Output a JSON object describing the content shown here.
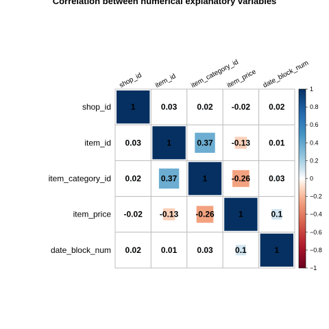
{
  "chart_data": {
    "type": "heatmap",
    "title": "Correlation between numerical explanatory variables",
    "variables": [
      "shop_id",
      "item_id",
      "item_category_id",
      "item_price",
      "date_block_num"
    ],
    "matrix": [
      [
        1,
        0.03,
        0.02,
        -0.02,
        0.02
      ],
      [
        0.03,
        1,
        0.37,
        -0.13,
        0.01
      ],
      [
        0.02,
        0.37,
        1,
        -0.26,
        0.03
      ],
      [
        -0.02,
        -0.13,
        -0.26,
        1,
        0.1
      ],
      [
        0.02,
        0.01,
        0.03,
        0.1,
        1
      ]
    ],
    "labels": [
      [
        "1",
        "0.03",
        "0.02",
        "-0.02",
        "0.02"
      ],
      [
        "0.03",
        "1",
        "0.37",
        "-0.13",
        "0.01"
      ],
      [
        "0.02",
        "0.37",
        "1",
        "-0.26",
        "0.03"
      ],
      [
        "-0.02",
        "-0.13",
        "-0.26",
        "1",
        "0.1"
      ],
      [
        "0.02",
        "0.01",
        "0.03",
        "0.1",
        "1"
      ]
    ],
    "colorbar": {
      "range": [
        -1,
        1
      ],
      "ticks": [
        1,
        0.8,
        0.6,
        0.4,
        0.2,
        0,
        -0.2,
        -0.4,
        -0.6,
        -0.8,
        -1
      ],
      "tick_labels": [
        "1",
        "0.8",
        "0.6",
        "0.4",
        "0.2",
        "0",
        "−0.2",
        "−0.4",
        "−0.6",
        "−0.8",
        "−1"
      ],
      "positive_color": "#053061",
      "neutral_color": "#ffffff",
      "negative_color": "#67001f"
    },
    "legend_placement": "right",
    "grid": true
  }
}
